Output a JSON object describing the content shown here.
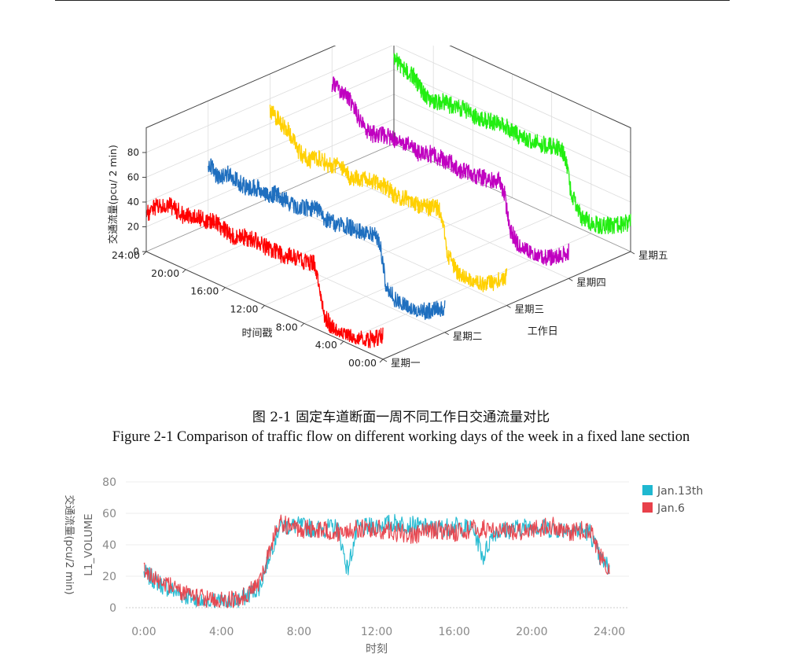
{
  "page": {
    "caption_zh": "图 2-1  固定车道断面一周不同工作日交通流量对比",
    "caption_en": "Figure 2-1 Comparison of traffic flow on different working days of the week in a fixed lane section"
  },
  "chart_data": [
    {
      "type": "line",
      "projection": "3d",
      "title": "",
      "zlabel": "交通流量(pcu/ 2 min)",
      "xlabel": "时间戳",
      "ylabel": "工作日",
      "z_ticks": [
        "0",
        "20",
        "40",
        "60",
        "80"
      ],
      "x_ticks": [
        "00:00",
        "4:00",
        "8:00",
        "12:00",
        "16:00",
        "20:00",
        "24:00"
      ],
      "y_ticks": [
        "星期一",
        "星期二",
        "星期三",
        "星期四",
        "星期五"
      ],
      "zlim": [
        0,
        90
      ],
      "xlim": [
        0,
        24
      ],
      "series": [
        {
          "name": "星期一",
          "color": "#ff0000",
          "x": [
            0,
            1,
            2,
            3,
            4,
            5,
            6,
            6.5,
            7,
            8,
            9,
            10,
            11,
            12,
            13,
            14,
            15,
            16,
            17,
            18,
            19,
            20,
            21,
            22,
            23,
            24
          ],
          "y": [
            20,
            12,
            10,
            6,
            5,
            6,
            14,
            40,
            52,
            50,
            50,
            48,
            47,
            48,
            50,
            48,
            44,
            46,
            50,
            45,
            48,
            42,
            45,
            46,
            40,
            30
          ]
        },
        {
          "name": "星期二",
          "color": "#1f6fbf",
          "x": [
            0,
            1,
            2,
            3,
            4,
            5,
            6,
            6.5,
            7,
            8,
            9,
            10,
            11,
            12,
            13,
            14,
            15,
            16,
            17,
            18,
            19,
            20,
            21,
            22,
            23,
            24
          ],
          "y": [
            20,
            14,
            10,
            5,
            6,
            8,
            18,
            44,
            54,
            52,
            50,
            50,
            48,
            48,
            52,
            50,
            46,
            48,
            50,
            46,
            48,
            44,
            46,
            48,
            42,
            50
          ]
        },
        {
          "name": "星期三",
          "color": "#ffd000",
          "x": [
            0,
            1,
            2,
            3,
            4,
            5,
            6,
            6.5,
            7,
            8,
            9,
            10,
            11,
            12,
            13,
            14,
            15,
            16,
            17,
            18,
            19,
            20,
            21,
            22,
            23,
            24
          ],
          "y": [
            24,
            16,
            10,
            6,
            6,
            8,
            20,
            46,
            54,
            50,
            48,
            50,
            47,
            50,
            52,
            50,
            48,
            46,
            52,
            48,
            50,
            45,
            47,
            60,
            65,
            70
          ]
        },
        {
          "name": "星期四",
          "color": "#c000c0",
          "x": [
            0,
            1,
            2,
            3,
            4,
            5,
            6,
            6.5,
            7,
            8,
            9,
            10,
            11,
            12,
            13,
            14,
            15,
            16,
            17,
            18,
            19,
            20,
            21,
            22,
            23,
            24
          ],
          "y": [
            22,
            14,
            10,
            5,
            6,
            8,
            18,
            44,
            54,
            50,
            50,
            48,
            48,
            50,
            50,
            50,
            46,
            48,
            50,
            48,
            48,
            44,
            48,
            62,
            68,
            70
          ]
        },
        {
          "name": "星期五",
          "color": "#22ee11",
          "x": [
            0,
            1,
            2,
            3,
            4,
            5,
            6,
            6.5,
            7,
            8,
            9,
            10,
            11,
            12,
            13,
            14,
            15,
            16,
            17,
            18,
            19,
            20,
            21,
            22,
            23,
            24
          ],
          "y": [
            24,
            18,
            14,
            10,
            8,
            10,
            24,
            48,
            58,
            56,
            54,
            54,
            52,
            54,
            56,
            54,
            52,
            52,
            54,
            52,
            52,
            48,
            52,
            62,
            64,
            70
          ]
        }
      ]
    },
    {
      "type": "line",
      "title": "",
      "xlabel": "时刻",
      "ylabel_zh": "交通流量(pcu/2 min)",
      "ylabel_en": "L1_VOLUME",
      "ylim": [
        0,
        80
      ],
      "xlim": [
        0,
        24
      ],
      "y_ticks": [
        "0",
        "20",
        "40",
        "60",
        "80"
      ],
      "x_ticks": [
        "0:00",
        "4:00",
        "8:00",
        "12:00",
        "16:00",
        "20:00",
        "24:00"
      ],
      "legend_placement": "top-right",
      "series": [
        {
          "name": "Jan.13th",
          "color": "#1fb8d0",
          "x": [
            0,
            0.5,
            1,
            2,
            3,
            4,
            5,
            6,
            6.5,
            7,
            8,
            9,
            10,
            10.5,
            11,
            12,
            13,
            14,
            15,
            16,
            17,
            17.5,
            18,
            19,
            20,
            21,
            22,
            23,
            23.5,
            24
          ],
          "y": [
            22,
            18,
            14,
            8,
            4,
            3,
            5,
            14,
            35,
            52,
            52,
            50,
            51,
            24,
            50,
            52,
            54,
            52,
            50,
            52,
            50,
            32,
            48,
            50,
            52,
            50,
            50,
            48,
            32,
            25
          ]
        },
        {
          "name": "Jan.6",
          "color": "#e8404a",
          "x": [
            0,
            0.5,
            1,
            2,
            3,
            4,
            5,
            6,
            6.5,
            7,
            8,
            9,
            10,
            11,
            12,
            13,
            14,
            15,
            16,
            17,
            18,
            19,
            20,
            21,
            22,
            23,
            23.5,
            24
          ],
          "y": [
            24,
            20,
            16,
            10,
            6,
            4,
            6,
            16,
            38,
            54,
            50,
            50,
            48,
            50,
            50,
            48,
            46,
            50,
            48,
            50,
            50,
            48,
            50,
            52,
            48,
            50,
            34,
            22
          ]
        }
      ]
    }
  ]
}
